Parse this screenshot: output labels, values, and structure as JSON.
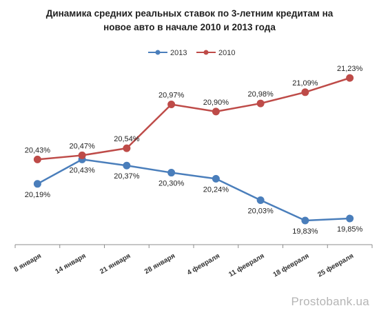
{
  "chart_data": {
    "type": "line",
    "title_line1": "Динамика средних реальных ставок по 3-летним кредитам на",
    "title_line2": "новое авто в начале 2010  и 2013  года",
    "categories": [
      "8 января",
      "14 января",
      "21 января",
      "28 января",
      "4 февраля",
      "11 февраля",
      "18 февраля",
      "25 февраля"
    ],
    "series": [
      {
        "name": "2013",
        "color": "#4a7ebb",
        "values": [
          20.19,
          20.43,
          20.37,
          20.3,
          20.24,
          20.03,
          19.83,
          19.85
        ],
        "labels": [
          "20,19%",
          "20,43%",
          "20,37%",
          "20,30%",
          "20,24%",
          "20,03%",
          "19,83%",
          "19,85%"
        ],
        "label_position": "below"
      },
      {
        "name": "2010",
        "color": "#be4b48",
        "values": [
          20.43,
          20.47,
          20.54,
          20.97,
          20.9,
          20.98,
          21.09,
          21.23
        ],
        "labels": [
          "20,43%",
          "20,47%",
          "20,54%",
          "20,97%",
          "20,90%",
          "20,98%",
          "21,09%",
          "21,23%"
        ],
        "label_position": "above"
      }
    ],
    "legend_position": "top",
    "ylim": [
      19.6,
      21.4
    ],
    "grid": false
  },
  "watermark": "Prostobank.ua"
}
